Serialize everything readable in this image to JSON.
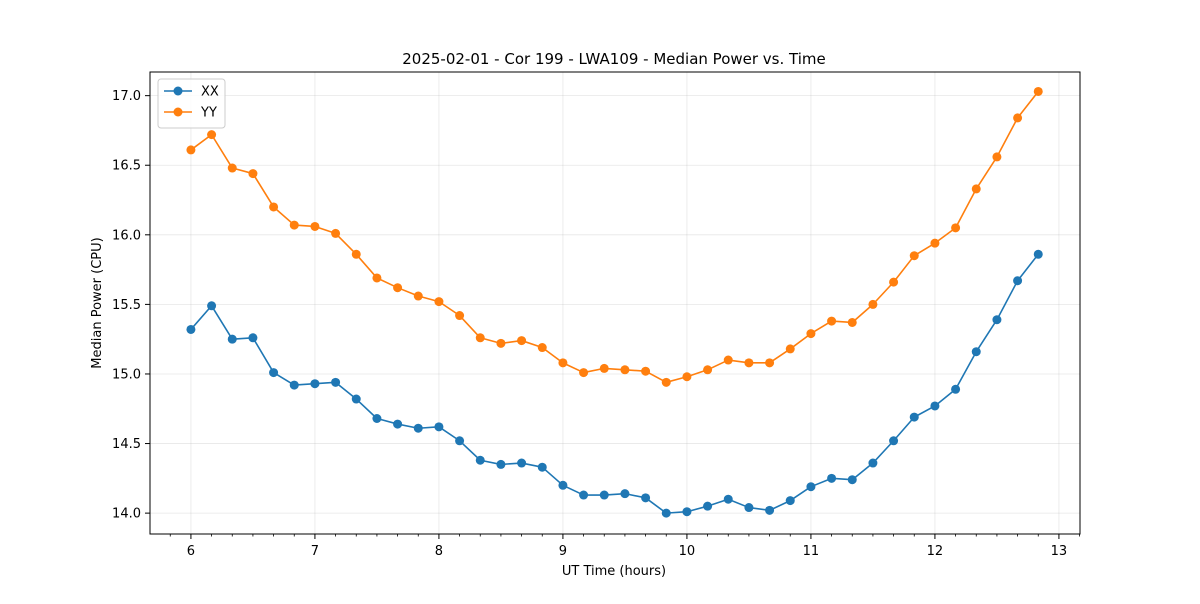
{
  "chart_data": {
    "type": "line",
    "title": "2025-02-01 - Cor 199 - LWA109 - Median Power vs. Time",
    "xlabel": "UT Time (hours)",
    "ylabel": "Median Power (CPU)",
    "xlim": [
      5.67,
      13.17
    ],
    "ylim": [
      13.85,
      17.17
    ],
    "grid": true,
    "legend_position": "top-left",
    "x_ticks": [
      6,
      7,
      8,
      9,
      10,
      11,
      12,
      13
    ],
    "x_tick_labels": [
      "6",
      "7",
      "8",
      "9",
      "10",
      "11",
      "12",
      "13"
    ],
    "y_ticks": [
      14.0,
      14.5,
      15.0,
      15.5,
      16.0,
      16.5,
      17.0
    ],
    "y_tick_labels": [
      "14.0",
      "14.5",
      "15.0",
      "15.5",
      "16.0",
      "16.5",
      "17.0"
    ],
    "x": [
      6.0,
      6.1667,
      6.3333,
      6.5,
      6.6667,
      6.8333,
      7.0,
      7.1667,
      7.3333,
      7.5,
      7.6667,
      7.8333,
      8.0,
      8.1667,
      8.3333,
      8.5,
      8.6667,
      8.8333,
      9.0,
      9.1667,
      9.3333,
      9.5,
      9.6667,
      9.8333,
      10.0,
      10.1667,
      10.3333,
      10.5,
      10.6667,
      10.8333,
      11.0,
      11.1667,
      11.3333,
      11.5,
      11.6667,
      11.8333,
      12.0,
      12.1667,
      12.3333,
      12.5,
      12.6667,
      12.8333
    ],
    "series": [
      {
        "name": "XX",
        "color": "#1f77b4",
        "values": [
          15.32,
          15.49,
          15.25,
          15.26,
          15.01,
          14.92,
          14.93,
          14.94,
          14.82,
          14.68,
          14.64,
          14.61,
          14.62,
          14.52,
          14.38,
          14.35,
          14.36,
          14.33,
          14.2,
          14.13,
          14.13,
          14.14,
          14.11,
          14.0,
          14.01,
          14.05,
          14.1,
          14.04,
          14.02,
          14.09,
          14.19,
          14.25,
          14.24,
          14.36,
          14.52,
          14.69,
          14.77,
          14.89,
          15.16,
          15.39,
          15.67,
          15.86
        ]
      },
      {
        "name": "YY",
        "color": "#ff7f0e",
        "values": [
          16.61,
          16.72,
          16.48,
          16.44,
          16.2,
          16.07,
          16.06,
          16.01,
          15.86,
          15.69,
          15.62,
          15.56,
          15.52,
          15.42,
          15.26,
          15.22,
          15.24,
          15.19,
          15.08,
          15.01,
          15.04,
          15.03,
          15.02,
          14.94,
          14.98,
          15.03,
          15.1,
          15.08,
          15.08,
          15.18,
          15.29,
          15.38,
          15.37,
          15.5,
          15.66,
          15.85,
          15.94,
          16.05,
          16.33,
          16.56,
          16.84,
          17.03
        ]
      }
    ]
  }
}
